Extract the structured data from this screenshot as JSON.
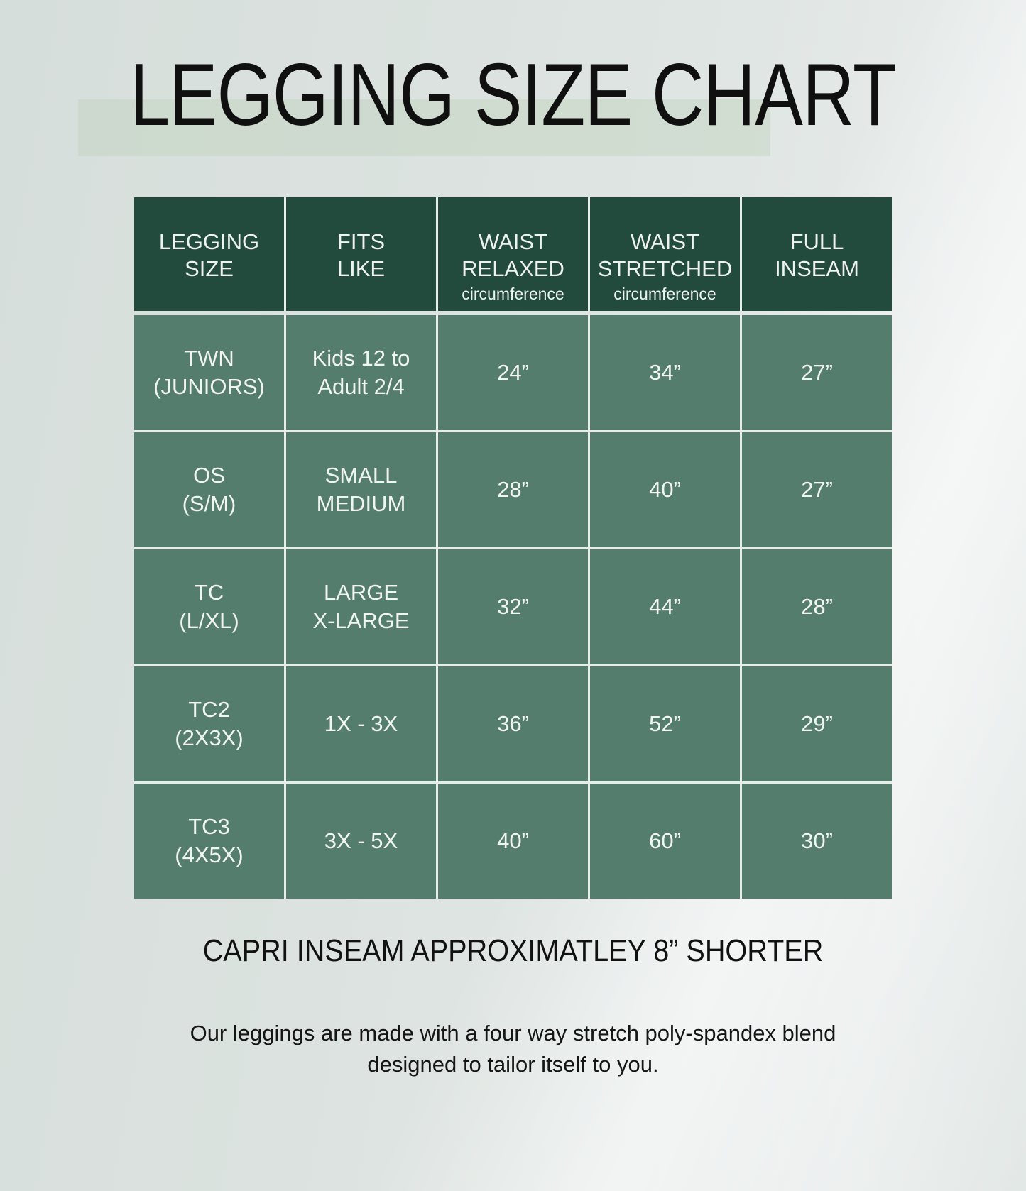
{
  "page": {
    "title": "LEGGING SIZE CHART"
  },
  "colors": {
    "header_bg": "#224a3d",
    "cell_bg": "#557d6e",
    "divider": "#e7edeb",
    "title_band": "#c6d5c2",
    "text_dark": "#101010",
    "cell_text": "#f0f5f2",
    "background": "#dce3e0"
  },
  "table": {
    "headers": [
      {
        "label": "LEGGING\nSIZE",
        "sub": ""
      },
      {
        "label": "FITS\nLIKE",
        "sub": ""
      },
      {
        "label": "WAIST\nRELAXED",
        "sub": "circumference"
      },
      {
        "label": "WAIST\nSTRETCHED",
        "sub": "circumference"
      },
      {
        "label": "FULL\nINSEAM",
        "sub": ""
      }
    ],
    "rows": [
      [
        "TWN\n(JUNIORS)",
        "Kids 12 to\nAdult 2/4",
        "24”",
        "34”",
        "27”"
      ],
      [
        "OS\n(S/M)",
        "SMALL\nMEDIUM",
        "28”",
        "40”",
        "27”"
      ],
      [
        "TC\n(L/XL)",
        "LARGE\nX-LARGE",
        "32”",
        "44”",
        "28”"
      ],
      [
        "TC2\n(2X3X)",
        "1X - 3X",
        "36”",
        "52”",
        "29”"
      ],
      [
        "TC3\n(4X5X)",
        "3X - 5X",
        "40”",
        "60”",
        "30”"
      ]
    ]
  },
  "footer": {
    "note": "CAPRI INSEAM APPROXIMATLEY 8” SHORTER",
    "description": "Our leggings are made with a four way stretch poly-spandex blend\ndesigned to tailor itself to you."
  },
  "chart_data": {
    "type": "table",
    "title": "LEGGING SIZE CHART",
    "columns": [
      "LEGGING SIZE",
      "FITS LIKE",
      "WAIST RELAXED circumference",
      "WAIST STRETCHED circumference",
      "FULL INSEAM"
    ],
    "rows": [
      [
        "TWN (JUNIORS)",
        "Kids 12 to Adult 2/4",
        "24”",
        "34”",
        "27”"
      ],
      [
        "OS (S/M)",
        "SMALL MEDIUM",
        "28”",
        "40”",
        "27”"
      ],
      [
        "TC (L/XL)",
        "LARGE X-LARGE",
        "32”",
        "44”",
        "28”"
      ],
      [
        "TC2 (2X3X)",
        "1X - 3X",
        "36”",
        "52”",
        "29”"
      ],
      [
        "TC3 (4X5X)",
        "3X - 5X",
        "40”",
        "60”",
        "30”"
      ]
    ],
    "waist_relaxed_inches": [
      24,
      28,
      32,
      36,
      40
    ],
    "waist_stretched_inches": [
      34,
      40,
      44,
      52,
      60
    ],
    "full_inseam_inches": [
      27,
      27,
      28,
      29,
      30
    ],
    "notes": [
      "CAPRI INSEAM APPROXIMATLEY 8” SHORTER"
    ]
  }
}
